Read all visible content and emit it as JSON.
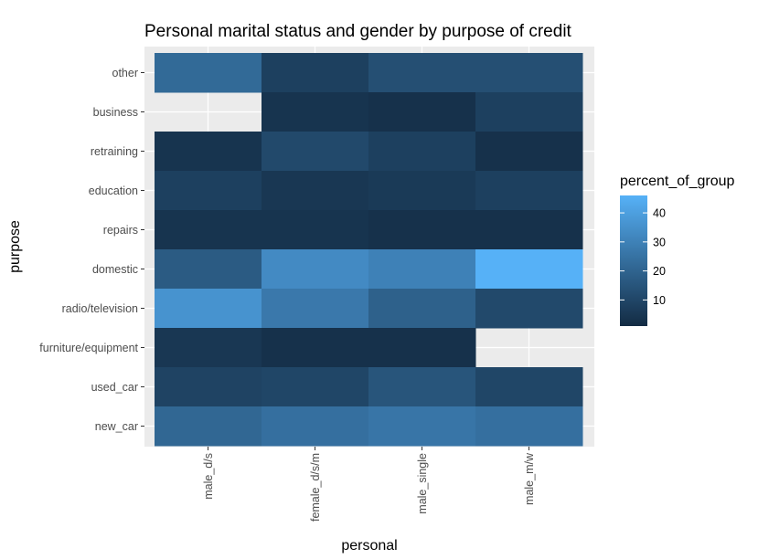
{
  "chart_data": {
    "type": "heatmap",
    "title": "Personal marital status and gender by purpose of credit",
    "xlabel": "personal",
    "ylabel": "purpose",
    "x_categories": [
      "male_d/s",
      "female_d/s/m",
      "male_single",
      "male_m/w"
    ],
    "y_categories": [
      "other",
      "business",
      "retraining",
      "education",
      "repairs",
      "domestic",
      "radio/television",
      "furniture/equipment",
      "used_car",
      "new_car"
    ],
    "values": [
      [
        22,
        8,
        13,
        13
      ],
      [
        null,
        4,
        3,
        8
      ],
      [
        4,
        11,
        8,
        3
      ],
      [
        8,
        5,
        6,
        8
      ],
      [
        4,
        4,
        3,
        3
      ],
      [
        17,
        33,
        30,
        46
      ],
      [
        36,
        27,
        19,
        11
      ],
      [
        5,
        3,
        3,
        null
      ],
      [
        9,
        10,
        15,
        10
      ],
      [
        21,
        24,
        26,
        24
      ]
    ],
    "color_scale": {
      "name": "percent_of_group",
      "min": 1,
      "max": 46,
      "low_color": "#132B43",
      "high_color": "#56B1F7",
      "legend_ticks": [
        10,
        20,
        30,
        40
      ]
    },
    "panel_background": "#EBEBEB",
    "grid": true
  }
}
